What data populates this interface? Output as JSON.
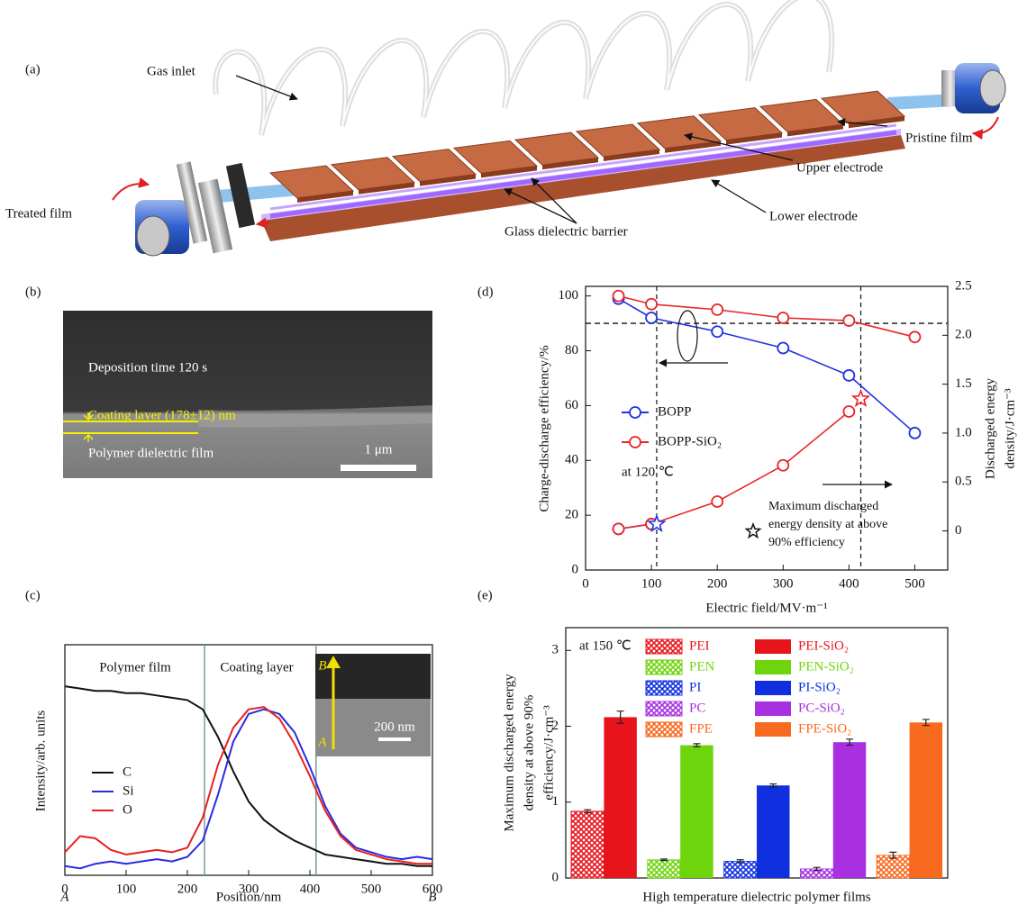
{
  "figure": {
    "panel_a": {
      "label": "(a)",
      "gas_inlet": "Gas inlet",
      "pristine_film": "Pristine film",
      "upper_electrode": "Upper electrode",
      "treated_film": "Treated film",
      "lower_electrode": "Lower electrode",
      "glass_barrier": "Glass dielectric barrier"
    },
    "panel_b": {
      "label": "(b)",
      "deposition": "Deposition time 120 s",
      "coating": "Coating layer (178±12) nm",
      "polymer": "Polymer dielectric film",
      "scale": "1 μm"
    }
  },
  "chart_data": [
    {
      "type": "line",
      "label": "(c)",
      "xlabel": "Position/nm",
      "ylabel": "Intensity/arb. units",
      "x_start": "A",
      "x_end": "B",
      "regions": [
        "Polymer film",
        "Coating layer"
      ],
      "dividers": [
        228,
        410
      ],
      "inset": {
        "top": "B",
        "bottom": "A",
        "scale": "200 nm"
      },
      "x": [
        0,
        25,
        50,
        75,
        100,
        125,
        150,
        175,
        200,
        225,
        250,
        275,
        300,
        325,
        350,
        375,
        400,
        425,
        450,
        475,
        500,
        525,
        550,
        575,
        600
      ],
      "series": [
        {
          "name": "C",
          "color": "#111111",
          "values": [
            0.82,
            0.81,
            0.8,
            0.8,
            0.79,
            0.79,
            0.78,
            0.77,
            0.76,
            0.72,
            0.6,
            0.45,
            0.32,
            0.24,
            0.19,
            0.15,
            0.12,
            0.09,
            0.08,
            0.07,
            0.06,
            0.05,
            0.05,
            0.04,
            0.04
          ]
        },
        {
          "name": "Si",
          "color": "#2a2ae0",
          "values": [
            0.04,
            0.03,
            0.05,
            0.06,
            0.05,
            0.06,
            0.07,
            0.06,
            0.08,
            0.15,
            0.35,
            0.58,
            0.7,
            0.72,
            0.7,
            0.62,
            0.47,
            0.3,
            0.18,
            0.12,
            0.1,
            0.08,
            0.07,
            0.08,
            0.07
          ]
        },
        {
          "name": "O",
          "color": "#e82020",
          "values": [
            0.1,
            0.17,
            0.16,
            0.11,
            0.09,
            0.1,
            0.11,
            0.1,
            0.12,
            0.25,
            0.48,
            0.64,
            0.72,
            0.73,
            0.68,
            0.57,
            0.43,
            0.28,
            0.17,
            0.11,
            0.09,
            0.07,
            0.06,
            0.05,
            0.05
          ]
        }
      ],
      "xlim": [
        0,
        600
      ],
      "ylim": [
        0,
        1
      ],
      "xticks": [
        0,
        100,
        200,
        300,
        400,
        500,
        600
      ]
    },
    {
      "type": "line",
      "label": "(d)",
      "xlabel": "Electric field/MV·m⁻¹",
      "ylabel": "Charge-discharge efficiency/%",
      "y2label": [
        "Discharged energy",
        "density/J·cm⁻³"
      ],
      "note": "at 120 ℃",
      "annotation": [
        "Maximum discharged",
        "energy density at above",
        "90% efficiency"
      ],
      "x": [
        50,
        100,
        200,
        300,
        400,
        500
      ],
      "series": [
        {
          "name": "BOPP",
          "color": "#2233dd",
          "values": [
            99,
            92,
            87,
            81,
            71,
            50
          ]
        },
        {
          "name": "BOPP-SiO₂",
          "color": "#e8262a",
          "values": [
            100,
            97,
            95,
            92,
            91,
            85
          ]
        },
        {
          "color": "#2233dd",
          "axis": "y2",
          "values": [
            0.02,
            0.07,
            null,
            null,
            null,
            null
          ]
        },
        {
          "color": "#e8262a",
          "axis": "y2",
          "values": [
            0.02,
            0.07,
            0.3,
            0.67,
            1.22,
            null
          ]
        }
      ],
      "stars": [
        {
          "x": 108,
          "y2": 0.07,
          "color": "#2233dd"
        },
        {
          "x": 418,
          "y2": 1.35,
          "color": "#e8262a"
        }
      ],
      "hline": 90,
      "vlines": [
        108,
        418
      ],
      "xlim": [
        0,
        550
      ],
      "ylim": [
        0,
        103.5
      ],
      "y2lim": [
        -0.4,
        2.5
      ],
      "xticks": [
        0,
        100,
        200,
        300,
        400,
        500
      ],
      "yticks": [
        0,
        20,
        40,
        60,
        80,
        100
      ],
      "y2ticks": [
        0,
        0.5,
        {
          "value": 1,
          "label": "1.0"
        },
        1.5,
        {
          "value": 2,
          "label": "2.0"
        },
        2.5
      ]
    },
    {
      "type": "bar",
      "label": "(e)",
      "xlabel": "High temperature dielectric polymer films",
      "ylabel": [
        "Maximum discharged energy",
        "density at above 90%",
        "efficiency/J·cm⁻³"
      ],
      "note": "at 150 ℃",
      "series": [
        {
          "name": "PEI",
          "color": "#e8141c",
          "hatched": true,
          "values": [
            0.88
          ],
          "errors": [
            0.02
          ]
        },
        {
          "name": "PEI-SiO₂",
          "color": "#e8141c",
          "hatched": false,
          "values": [
            2.12
          ],
          "errors": [
            0.08
          ]
        },
        {
          "name": "PEN",
          "color": "#6ed40c",
          "hatched": true,
          "values": [
            0.24
          ],
          "errors": [
            0.01
          ]
        },
        {
          "name": "PEN-SiO₂",
          "color": "#6ed40c",
          "hatched": false,
          "values": [
            1.75
          ],
          "errors": [
            0.02
          ]
        },
        {
          "name": "PI",
          "color": "#1030e0",
          "hatched": true,
          "values": [
            0.22
          ],
          "errors": [
            0.02
          ]
        },
        {
          "name": "PI-SiO₂",
          "color": "#1030e0",
          "hatched": false,
          "values": [
            1.22
          ],
          "errors": [
            0.02
          ]
        },
        {
          "name": "PC",
          "color": "#a830e0",
          "hatched": true,
          "values": [
            0.12
          ],
          "errors": [
            0.02
          ]
        },
        {
          "name": "PC-SiO₂",
          "color": "#a830e0",
          "hatched": false,
          "values": [
            1.79
          ],
          "errors": [
            0.04
          ]
        },
        {
          "name": "FPE",
          "color": "#f86a20",
          "hatched": true,
          "values": [
            0.3
          ],
          "errors": [
            0.04
          ]
        },
        {
          "name": "FPE-SiO₂",
          "color": "#f86a20",
          "hatched": false,
          "values": [
            2.05
          ],
          "errors": [
            0.04
          ]
        }
      ],
      "ylim": [
        0,
        3.3
      ],
      "yticks": [
        0,
        1,
        2,
        3
      ]
    }
  ]
}
